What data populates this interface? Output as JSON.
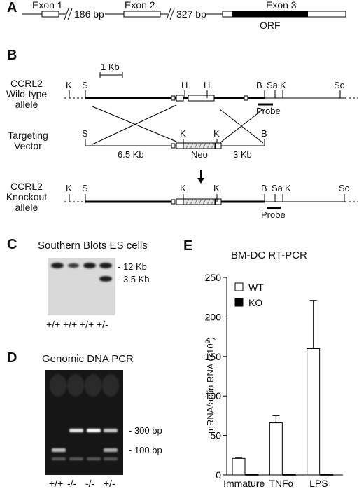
{
  "panel_letters": {
    "a": "A",
    "b": "B",
    "c": "C",
    "d": "D",
    "e": "E"
  },
  "panel_a": {
    "exons": [
      "Exon 1",
      "Exon 2",
      "Exon 3"
    ],
    "gaps": [
      "186 bp",
      "327 bp"
    ],
    "orf_label": "ORF"
  },
  "panel_b": {
    "scale_label": "1 Kb",
    "wt_label_lines": [
      "CCRL2",
      "Wild-type",
      "allele"
    ],
    "vector_label_lines": [
      "Targeting",
      "Vector"
    ],
    "ko_label_lines": [
      "CCRL2",
      "Knockout",
      "allele"
    ],
    "site_letters": {
      "K": "K",
      "S": "S",
      "H": "H",
      "B": "B",
      "Sa": "Sa",
      "Sc": "Sc"
    },
    "probe_label": "Probe",
    "arm_left": "6.5 Kb",
    "neo_label": "Neo",
    "arm_right": "3 Kb"
  },
  "panel_c": {
    "title": "Southern Blots ES cells",
    "bands": [
      "- 12 Kb",
      "- 3.5 Kb"
    ],
    "lanes": [
      "+/+",
      "+/+",
      "+/+",
      "+/-"
    ]
  },
  "panel_d": {
    "title": "Genomic DNA PCR",
    "bands": [
      "- 300 bp",
      "- 100 bp"
    ],
    "lanes": [
      "+/+",
      "-/-",
      "-/-",
      "+/-"
    ]
  },
  "chart_data": {
    "type": "bar",
    "title": "BM-DC RT-PCR",
    "ylabel": "mRNA/actin RNA (x10^9)",
    "ylabel_main": "mRNA/actin RNA (x10",
    "ylabel_sup": "9",
    "ylabel_close": ")",
    "ylim": [
      0,
      250
    ],
    "yticks": [
      "0",
      "50",
      "100",
      "150",
      "200",
      "250"
    ],
    "categories": [
      "Immature",
      "TNFα",
      "LPS"
    ],
    "series": [
      {
        "name": "WT",
        "values": [
          21,
          66,
          160
        ],
        "errors": [
          1,
          9,
          61
        ],
        "color": "#ffffff"
      },
      {
        "name": "KO",
        "values": [
          1,
          1,
          1
        ],
        "errors": [
          0,
          0,
          0
        ],
        "color": "#000000"
      }
    ],
    "legend_position": "top-left"
  }
}
